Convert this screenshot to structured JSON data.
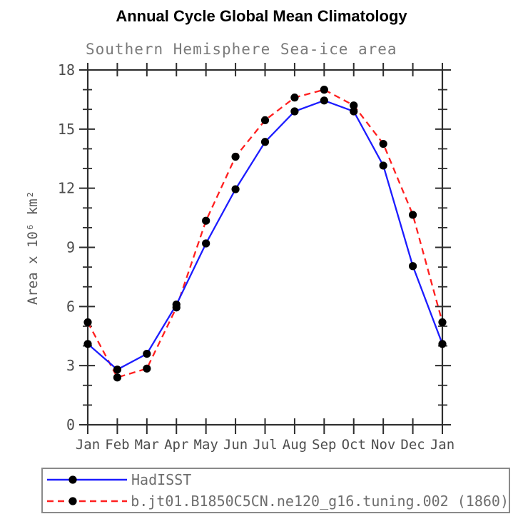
{
  "chart_data": {
    "type": "line",
    "title": "Annual Cycle Global Mean Climatology",
    "subtitle": "Southern Hemisphere Sea-ice area",
    "xlabel": "",
    "ylabel": "Area x 10⁶ km²",
    "categories": [
      "Jan",
      "Feb",
      "Mar",
      "Apr",
      "May",
      "Jun",
      "Jul",
      "Aug",
      "Sep",
      "Oct",
      "Nov",
      "Dec",
      "Jan"
    ],
    "ylim": [
      0,
      18
    ],
    "yticks": [
      0,
      3,
      6,
      9,
      12,
      15,
      18
    ],
    "y_minor_step": 1,
    "grid": false,
    "legend_position": "bottom-box",
    "frame_color": "#2e2e2e",
    "marker": "filled-circle",
    "marker_color": "#000000",
    "series": [
      {
        "name": "HadISST",
        "color": "#1c1cff",
        "style": "solid",
        "values": [
          4.1,
          2.8,
          3.6,
          6.1,
          9.2,
          11.95,
          14.35,
          15.9,
          16.45,
          15.9,
          13.15,
          8.05,
          4.1
        ]
      },
      {
        "name": "b.jt01.B1850C5CN.ne120_g16.tuning.002 (1860)",
        "color": "#ff1f1f",
        "style": "dashed",
        "values": [
          5.2,
          2.4,
          2.85,
          5.95,
          10.35,
          13.6,
          15.45,
          16.6,
          17.0,
          16.2,
          14.25,
          10.65,
          5.2
        ]
      }
    ]
  }
}
